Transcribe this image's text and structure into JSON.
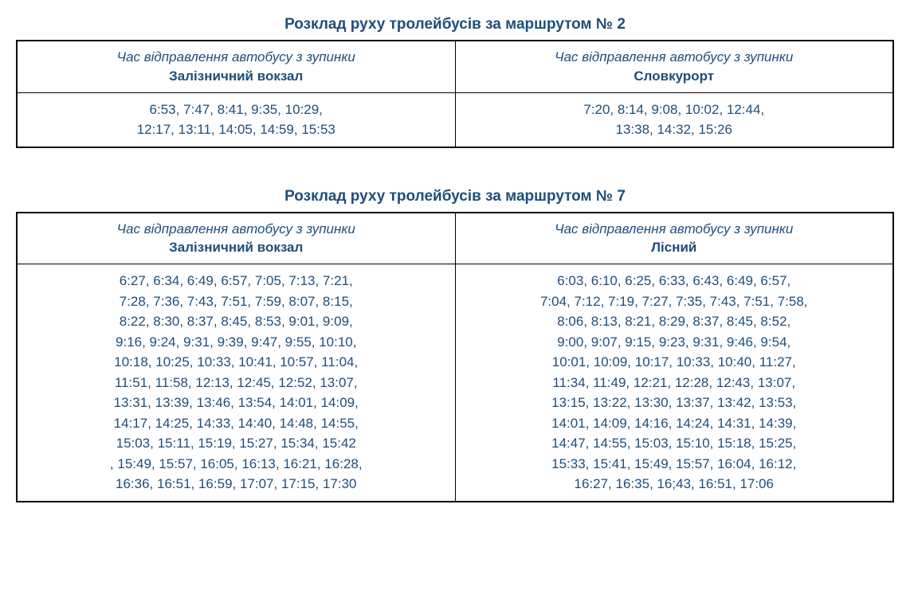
{
  "route2": {
    "title": "Розклад руху тролейбусів за маршрутом № 2",
    "headerSubtitle": "Час відправлення автобусу з зупинки",
    "leftStop": "Залізничний вокзал",
    "rightStop": "Словкурорт",
    "leftTimes": "6:53, 7:47, 8:41, 9:35, 10:29,\n12:17, 13:11, 14:05, 14:59, 15:53",
    "rightTimes": "7:20, 8:14, 9:08, 10:02, 12:44,\n13:38, 14:32, 15:26"
  },
  "route7": {
    "title": "Розклад руху тролейбусів за маршрутом № 7",
    "headerSubtitle": "Час відправлення автобусу з зупинки",
    "leftStop": "Залізничний вокзал",
    "rightStop": "Лісний",
    "leftTimes": "6:27, 6:34, 6:49, 6:57, 7:05, 7:13, 7:21,\n7:28, 7:36, 7:43, 7:51, 7:59, 8:07, 8:15,\n8:22,  8:30, 8:37, 8:45, 8:53, 9:01, 9:09,\n9:16, 9:24, 9:31, 9:39, 9:47, 9:55, 10:10,\n10:18, 10:25, 10:33, 10:41,  10:57, 11:04,\n11:51, 11:58, 12:13, 12:45, 12:52, 13:07,\n13:31, 13:39, 13:46, 13:54, 14:01, 14:09,\n14:17, 14:25, 14:33, 14:40, 14:48, 14:55,\n15:03, 15:11, 15:19, 15:27, 15:34, 15:42\n, 15:49, 15:57, 16:05, 16:13, 16:21, 16:28,\n16:36, 16:51, 16:59, 17:07, 17:15, 17:30",
    "rightTimes": "6:03, 6:10, 6:25, 6:33, 6:43, 6:49, 6:57,\n7:04, 7:12, 7:19, 7:27, 7:35, 7:43, 7:51, 7:58,\n8:06, 8:13, 8:21, 8:29, 8:37, 8:45, 8:52,\n9:00, 9:07, 9:15, 9:23, 9:31, 9:46, 9:54,\n10:01, 10:09, 10:17, 10:33, 10:40, 11:27,\n11:34, 11:49, 12:21, 12:28, 12:43, 13:07,\n13:15, 13:22, 13:30, 13:37, 13:42, 13:53,\n14:01, 14:09, 14:16, 14:24, 14:31, 14:39,\n14:47, 14:55, 15:03, 15:10, 15:18, 15:25,\n15:33, 15:41, 15:49, 15:57, 16:04, 16:12,\n16:27, 16:35, 16;43, 16:51, 17:06"
  },
  "styles": {
    "titleColor": "#1f4e79",
    "textColor": "#1f4e79",
    "borderColor": "#000000",
    "backgroundColor": "#ffffff",
    "titleFontSize": 19,
    "cellFontSize": 17
  }
}
